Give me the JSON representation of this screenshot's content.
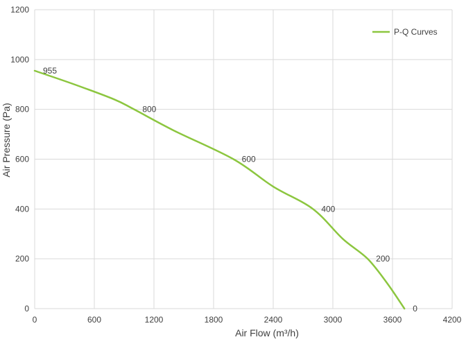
{
  "chart_data": {
    "type": "line",
    "xlabel": "Air Flow  (m³/h)",
    "ylabel": "Air Pressure  (Pa)",
    "xlim": [
      0,
      4200
    ],
    "ylim": [
      0,
      1200
    ],
    "x_ticks": [
      "0",
      "600",
      "1200",
      "1800",
      "2400",
      "3000",
      "3600",
      "4200"
    ],
    "y_ticks": [
      "0",
      "200",
      "400",
      "600",
      "800",
      "1000",
      "1200"
    ],
    "grid": true,
    "legend_position": "top-right",
    "series": [
      {
        "name": "P-Q Curves",
        "color": "#8cc63f",
        "points": [
          {
            "x": 0,
            "y": 955
          },
          {
            "x": 400,
            "y": 900
          },
          {
            "x": 800,
            "y": 840
          },
          {
            "x": 1000,
            "y": 800
          },
          {
            "x": 1400,
            "y": 715
          },
          {
            "x": 2000,
            "y": 600
          },
          {
            "x": 2400,
            "y": 490
          },
          {
            "x": 2800,
            "y": 400
          },
          {
            "x": 3100,
            "y": 280
          },
          {
            "x": 3350,
            "y": 200
          },
          {
            "x": 3550,
            "y": 100
          },
          {
            "x": 3720,
            "y": 0
          }
        ]
      }
    ],
    "annotations": [
      {
        "text": "955",
        "x": 0,
        "y": 955
      },
      {
        "text": "800",
        "x": 1000,
        "y": 800
      },
      {
        "text": "600",
        "x": 2000,
        "y": 600
      },
      {
        "text": "400",
        "x": 2800,
        "y": 400
      },
      {
        "text": "200",
        "x": 3350,
        "y": 200
      },
      {
        "text": "0",
        "x": 3720,
        "y": 0
      }
    ]
  }
}
